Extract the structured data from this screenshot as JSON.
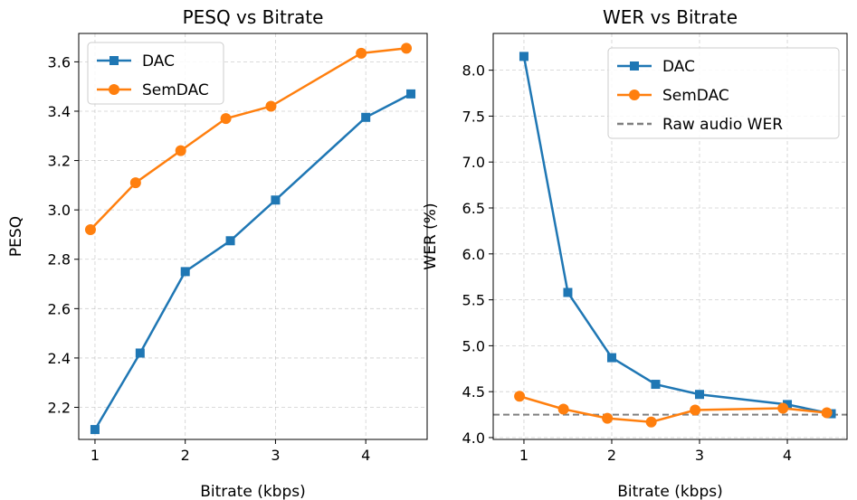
{
  "chart_data": [
    {
      "type": "line",
      "title": "PESQ vs Bitrate",
      "xlabel": "Bitrate (kbps)",
      "ylabel": "PESQ",
      "xlim": [
        0.82,
        4.68
      ],
      "ylim": [
        2.07,
        3.715
      ],
      "xticks": [
        1,
        2,
        3,
        4
      ],
      "yticks": [
        2.2,
        2.4,
        2.6,
        2.8,
        3.0,
        3.2,
        3.4,
        3.6
      ],
      "ytick_labels": [
        "2.2",
        "2.4",
        "2.6",
        "2.8",
        "3.0",
        "3.2",
        "3.4",
        "3.6"
      ],
      "grid": true,
      "legend_position": "top-left",
      "series": [
        {
          "name": "DAC",
          "color": "#1f77b4",
          "marker": "square",
          "x": [
            1.0,
            1.5,
            2.0,
            2.5,
            3.0,
            4.0,
            4.5
          ],
          "y": [
            2.11,
            2.42,
            2.75,
            2.875,
            3.04,
            3.375,
            3.47
          ]
        },
        {
          "name": "SemDAC",
          "color": "#ff7f0e",
          "marker": "circle",
          "x": [
            0.95,
            1.45,
            1.95,
            2.45,
            2.95,
            3.95,
            4.45
          ],
          "y": [
            2.92,
            3.11,
            3.24,
            3.37,
            3.42,
            3.635,
            3.655
          ]
        }
      ]
    },
    {
      "type": "line",
      "title": "WER vs Bitrate",
      "xlabel": "Bitrate (kbps)",
      "ylabel": "WER (%)",
      "xlim": [
        0.65,
        4.68
      ],
      "ylim": [
        3.98,
        8.4
      ],
      "xticks": [
        1,
        2,
        3,
        4
      ],
      "yticks": [
        4.0,
        4.5,
        5.0,
        5.5,
        6.0,
        6.5,
        7.0,
        7.5,
        8.0
      ],
      "ytick_labels": [
        "4.0",
        "4.5",
        "5.0",
        "5.5",
        "6.0",
        "6.5",
        "7.0",
        "7.5",
        "8.0"
      ],
      "grid": true,
      "legend_position": "top-right",
      "series": [
        {
          "name": "DAC",
          "color": "#1f77b4",
          "marker": "square",
          "x": [
            1.0,
            1.5,
            2.0,
            2.5,
            3.0,
            4.0,
            4.5
          ],
          "y": [
            8.15,
            5.58,
            4.87,
            4.58,
            4.47,
            4.36,
            4.26
          ]
        },
        {
          "name": "SemDAC",
          "color": "#ff7f0e",
          "marker": "circle",
          "x": [
            0.95,
            1.45,
            1.95,
            2.45,
            2.95,
            3.95,
            4.45
          ],
          "y": [
            4.45,
            4.31,
            4.21,
            4.17,
            4.3,
            4.32,
            4.27
          ]
        }
      ],
      "reference_line": {
        "name": "Raw audio WER",
        "value": 4.25,
        "color": "#808080",
        "style": "dashed"
      }
    }
  ]
}
